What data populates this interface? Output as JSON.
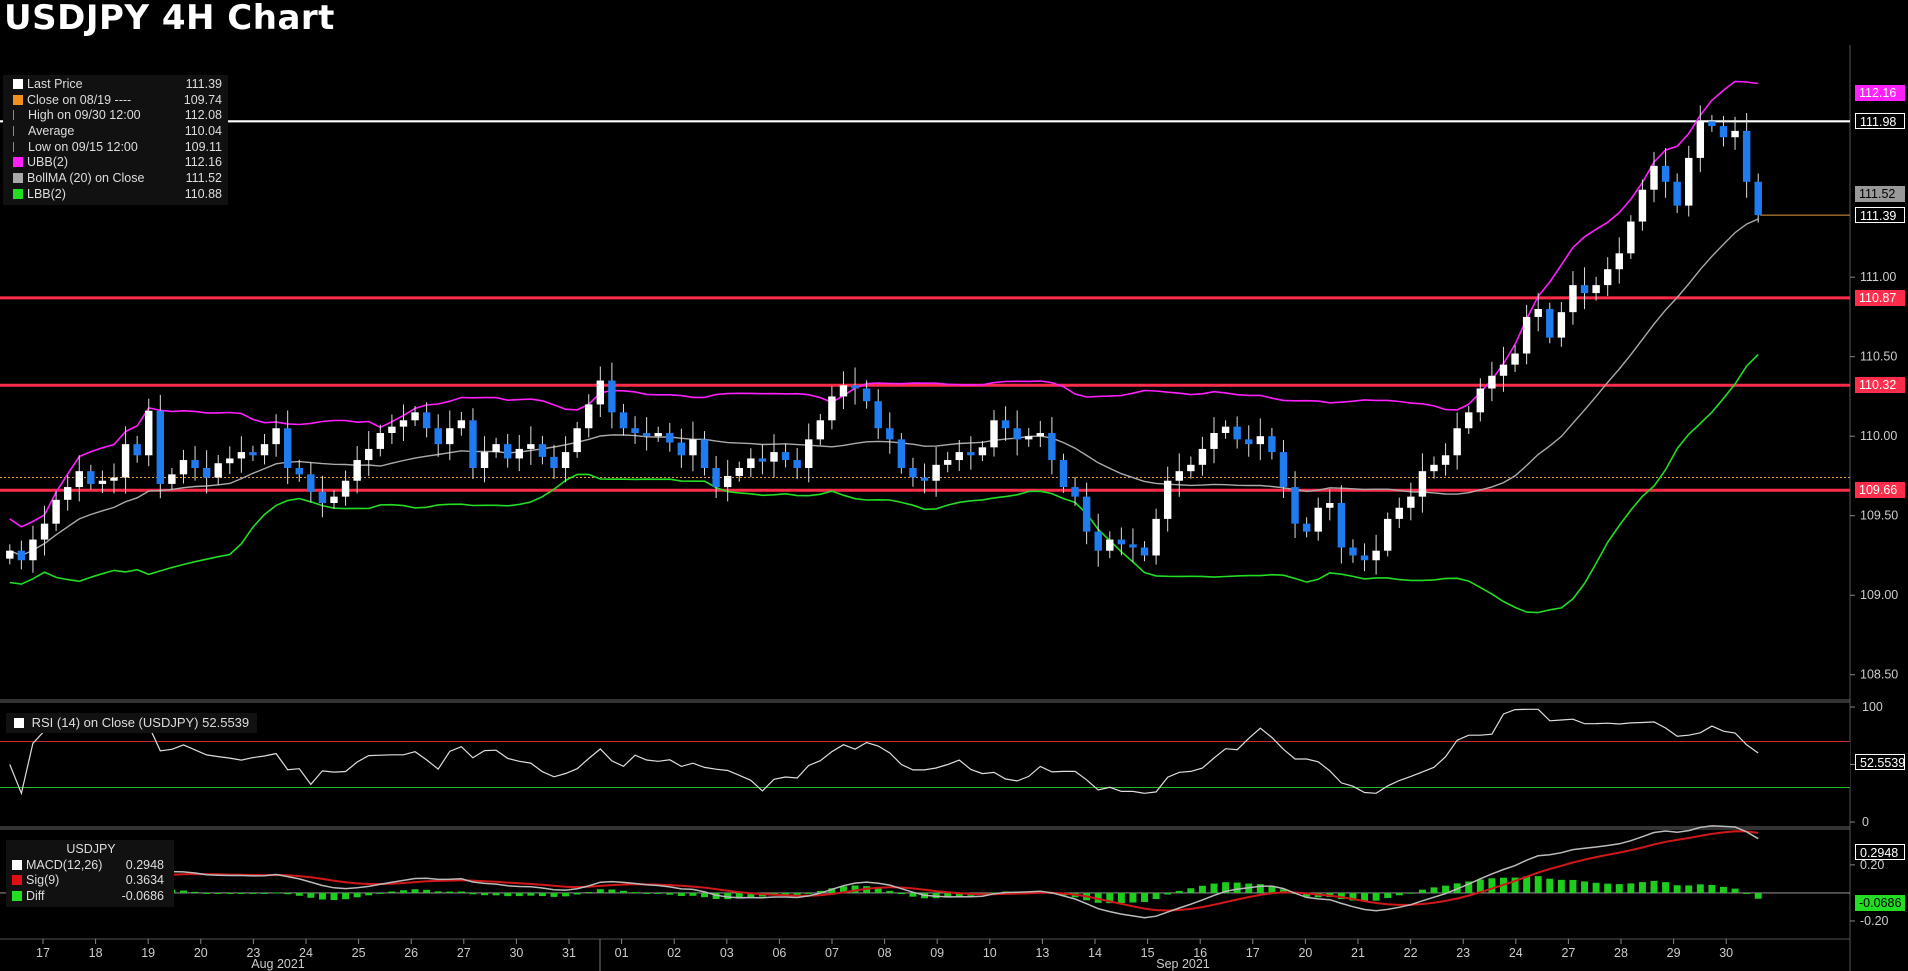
{
  "title": "USDJPY 4H Chart",
  "colors": {
    "background": "#000000",
    "up": "#ffffff",
    "down": "#1e7bf0",
    "ubb": "#ff1fff",
    "bollma": "#aaaaaa",
    "lbb": "#22dd22",
    "support": "#ff2d4a",
    "last_price_line": "#ffffff",
    "close_line": "#e89a3c"
  },
  "legend": {
    "items": [
      {
        "label": "Last Price",
        "value": "111.39",
        "color": "#ffffff"
      },
      {
        "label": "Close on 08/19 ----",
        "value": "109.74",
        "color": "#f0901e"
      },
      {
        "label": "High on 09/30 12:00",
        "value": "112.08",
        "color": ""
      },
      {
        "label": "Average",
        "value": "110.04",
        "color": ""
      },
      {
        "label": "Low on 09/15 12:00",
        "value": "109.11",
        "color": ""
      },
      {
        "label": "UBB(2)",
        "value": "112.16",
        "color": "#ff1fff"
      },
      {
        "label": "BollMA (20)  on Close",
        "value": "111.52",
        "color": "#aaaaaa"
      },
      {
        "label": "LBB(2)",
        "value": "110.88",
        "color": "#22dd22"
      }
    ]
  },
  "rsi_legend": {
    "label": "RSI (14)  on Close (USDJPY)",
    "value": "52.5539"
  },
  "macd_legend": {
    "title": "USDJPY",
    "items": [
      {
        "label": "MACD(12,26)",
        "value": "0.2948",
        "color": "#ffffff"
      },
      {
        "label": "Sig(9)",
        "value": "0.3634",
        "color": "#e01010"
      },
      {
        "label": "Diff",
        "value": "-0.0686",
        "color": "#22dd22"
      }
    ]
  },
  "price_tags": [
    {
      "value": "112.16",
      "price": 112.16,
      "bg": "#ff1fff",
      "fg": "#ffffff"
    },
    {
      "value": "111.98",
      "price": 111.98,
      "bg": "#000000",
      "fg": "#ffffff",
      "border": "#ffffff"
    },
    {
      "value": "111.52",
      "price": 111.52,
      "bg": "#999999",
      "fg": "#000000"
    },
    {
      "value": "111.39",
      "price": 111.39,
      "bg": "#000000",
      "fg": "#ffffff",
      "border": "#ffffff"
    },
    {
      "value": "110.87",
      "price": 110.87,
      "bg": "#ff2d4a",
      "fg": "#ffffff"
    },
    {
      "value": "110.32",
      "price": 110.32,
      "bg": "#ff2d4a",
      "fg": "#ffffff"
    },
    {
      "value": "109.66",
      "price": 109.66,
      "bg": "#ff2d4a",
      "fg": "#ffffff"
    }
  ],
  "rsi_tag": {
    "value": "52.5539",
    "rsi": 52.55
  },
  "macd_tags": [
    {
      "value": "0.2948",
      "macd": 0.2948,
      "bg": "#000000",
      "fg": "#ffffff",
      "border": "#ffffff"
    },
    {
      "value": "-0.0686",
      "macd": -0.0686,
      "bg": "#22dd22",
      "fg": "#000000"
    }
  ],
  "chart_data": {
    "type": "candlestick",
    "title": "USDJPY 4H Chart",
    "y_axis": {
      "ticks": [
        108.5,
        109.0,
        109.5,
        110.0,
        110.5,
        111.0
      ],
      "tick_labels": [
        "108.50",
        "109.00",
        "109.50",
        "110.00",
        "110.50",
        "111.00"
      ],
      "range": [
        108.36,
        112.46
      ]
    },
    "x_axis": {
      "day_labels": [
        "17",
        "18",
        "19",
        "20",
        "23",
        "24",
        "25",
        "26",
        "27",
        "30",
        "31",
        "01",
        "02",
        "03",
        "06",
        "07",
        "08",
        "09",
        "10",
        "13",
        "14",
        "15",
        "16",
        "17",
        "20",
        "21",
        "22",
        "23",
        "24",
        "27",
        "28",
        "29",
        "30"
      ],
      "month_labels": [
        "Aug 2021",
        "Sep 2021"
      ],
      "range": [
        0,
        33
      ]
    },
    "horizontal_lines": [
      {
        "name": "resistance",
        "price": 110.87
      },
      {
        "name": "resistance",
        "price": 110.32
      },
      {
        "name": "support",
        "price": 109.66
      },
      {
        "name": "recent-high",
        "price": 111.98
      },
      {
        "name": "close-08-19",
        "price": 109.74
      }
    ],
    "candles_close": [
      109.28,
      109.22,
      109.35,
      109.45,
      109.6,
      109.68,
      109.78,
      109.7,
      109.72,
      109.74,
      109.95,
      109.88,
      110.16,
      109.7,
      109.76,
      109.85,
      109.8,
      109.74,
      109.83,
      109.86,
      109.9,
      109.88,
      109.95,
      110.05,
      109.8,
      109.76,
      109.65,
      109.58,
      109.62,
      109.72,
      109.85,
      109.92,
      110.02,
      110.06,
      110.1,
      110.15,
      110.05,
      109.95,
      110.05,
      110.1,
      109.8,
      109.9,
      109.95,
      109.86,
      109.92,
      109.95,
      109.87,
      109.8,
      109.9,
      110.05,
      110.2,
      110.35,
      110.15,
      110.05,
      110.02,
      110.0,
      110.02,
      109.96,
      109.88,
      109.98,
      109.8,
      109.68,
      109.75,
      109.8,
      109.86,
      109.84,
      109.9,
      109.85,
      109.8,
      109.98,
      110.1,
      110.25,
      110.32,
      110.3,
      110.22,
      110.05,
      109.98,
      109.8,
      109.74,
      109.72,
      109.82,
      109.85,
      109.9,
      109.88,
      109.93,
      110.1,
      110.05,
      109.98,
      110.0,
      110.02,
      109.85,
      109.68,
      109.62,
      109.4,
      109.28,
      109.35,
      109.32,
      109.3,
      109.25,
      109.48,
      109.72,
      109.78,
      109.82,
      109.92,
      110.02,
      110.06,
      109.98,
      109.95,
      110.0,
      109.9,
      109.68,
      109.45,
      109.4,
      109.55,
      109.58,
      109.3,
      109.25,
      109.22,
      109.28,
      109.48,
      109.55,
      109.62,
      109.78,
      109.82,
      109.88,
      110.05,
      110.15,
      110.3,
      110.38,
      110.45,
      110.52,
      110.75,
      110.8,
      110.62,
      110.78,
      110.95,
      110.9,
      110.95,
      111.05,
      111.15,
      111.35,
      111.55,
      111.7,
      111.6,
      111.45,
      111.75,
      111.98,
      111.95,
      111.88,
      111.92,
      111.6,
      111.39
    ]
  }
}
